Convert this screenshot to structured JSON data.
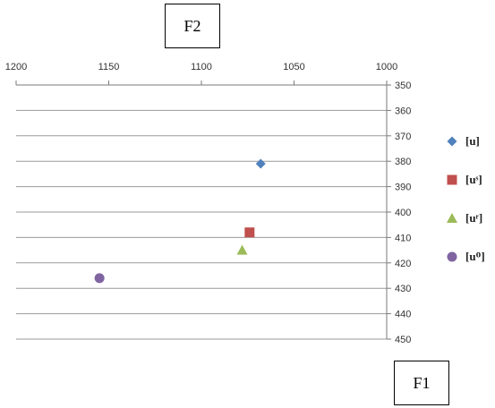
{
  "chart_data": {
    "type": "scatter",
    "xlabel": "F2",
    "ylabel": "F1",
    "x_axis": {
      "min": 1000,
      "max": 1200,
      "reversed": true,
      "position": "top",
      "ticks": [
        1200,
        1150,
        1100,
        1050,
        1000
      ]
    },
    "y_axis": {
      "min": 350,
      "max": 450,
      "reversed": true,
      "position": "right",
      "ticks": [
        350,
        360,
        370,
        380,
        390,
        400,
        410,
        420,
        430,
        440,
        450
      ]
    },
    "grid": true,
    "legend_position": "right",
    "series": [
      {
        "name": "[u]",
        "marker": "diamond",
        "color": "#4f81bd",
        "points": [
          {
            "x": 1068,
            "y": 381
          }
        ]
      },
      {
        "name": "[uˢ]",
        "marker": "square",
        "color": "#c0504d",
        "points": [
          {
            "x": 1074,
            "y": 408
          }
        ]
      },
      {
        "name": "[uʳ]",
        "marker": "triangle",
        "color": "#9bbb59",
        "points": [
          {
            "x": 1078,
            "y": 415
          }
        ]
      },
      {
        "name": "[uᴼ]",
        "marker": "circle",
        "color": "#8064a2",
        "points": [
          {
            "x": 1155,
            "y": 426
          }
        ]
      }
    ]
  }
}
